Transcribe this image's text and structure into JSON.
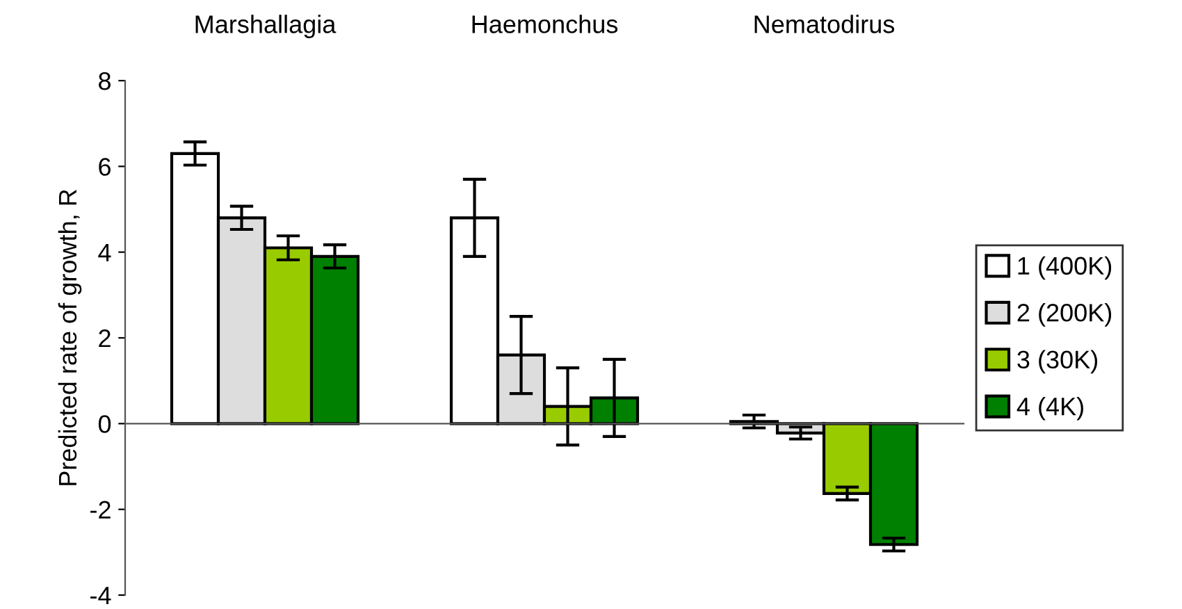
{
  "chart_data": {
    "type": "bar",
    "categories": [
      "Marshallagia",
      "Haemonchus",
      "Nematodirus"
    ],
    "ylabel": "Predicted rate of growth, R",
    "ylim": [
      -4,
      8
    ],
    "yticks": [
      -4,
      -2,
      0,
      2,
      4,
      6,
      8
    ],
    "legend": "right",
    "series": [
      {
        "name": "1 (400K)",
        "color": "#ffffff",
        "values": [
          6.3,
          4.8,
          0.05
        ],
        "errors": [
          0.27,
          0.9,
          0.15
        ]
      },
      {
        "name": "2 (200K)",
        "color": "#dddddd",
        "values": [
          4.8,
          1.6,
          -0.22
        ],
        "errors": [
          0.27,
          0.9,
          0.14
        ]
      },
      {
        "name": "3 (30K)",
        "color": "#99cc00",
        "values": [
          4.1,
          0.4,
          -1.63
        ],
        "errors": [
          0.28,
          0.9,
          0.15
        ]
      },
      {
        "name": "4 (4K)",
        "color": "#008000",
        "values": [
          3.9,
          0.6,
          -2.82
        ],
        "errors": [
          0.27,
          0.9,
          0.15
        ]
      }
    ]
  }
}
